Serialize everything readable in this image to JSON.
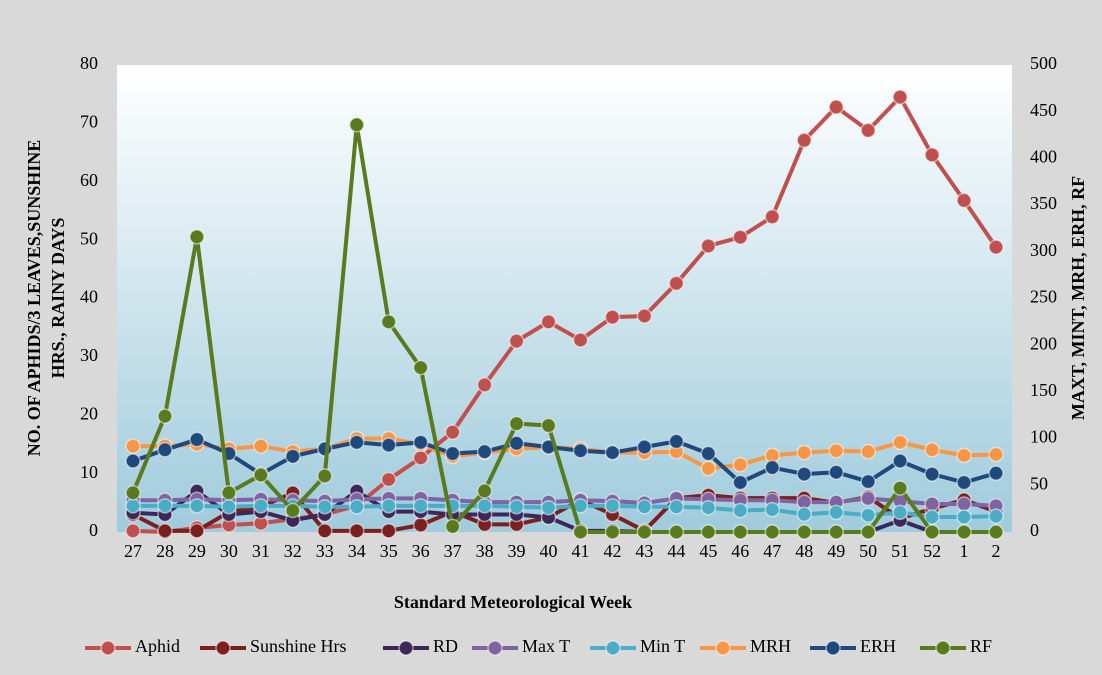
{
  "chart_data": {
    "type": "line",
    "xlabel": "Standard Meteorological Week",
    "ylabel": [
      "NO. OF APHIDS/3 LEAVES,SUNSHINE",
      "HRS., RAINY DAYS"
    ],
    "y2label": "MAXT, MINT, MRH, ERH, RF",
    "categories": [
      "27",
      "28",
      "29",
      "30",
      "31",
      "32",
      "33",
      "34",
      "35",
      "36",
      "37",
      "38",
      "39",
      "40",
      "41",
      "42",
      "43",
      "44",
      "45",
      "46",
      "47",
      "48",
      "49",
      "50",
      "51",
      "52",
      "1",
      "2"
    ],
    "ylim": [
      0,
      80
    ],
    "yticks": [
      0,
      10,
      20,
      30,
      40,
      50,
      60,
      70,
      80
    ],
    "y2lim": [
      0,
      500
    ],
    "y2ticks": [
      0,
      50,
      100,
      150,
      200,
      250,
      300,
      350,
      400,
      450,
      500
    ],
    "series": [
      {
        "name": "Aphid",
        "color": "#c0504d",
        "values": [
          0.2,
          0,
          0.7,
          1.2,
          1.5,
          2.2,
          3,
          4.5,
          9,
          12.7,
          17.1,
          25.2,
          32.7,
          36,
          32.9,
          36.8,
          37,
          42.6,
          49,
          50.5,
          54,
          67.1,
          72.8,
          68.8,
          74.5,
          64.6,
          56.8,
          48.8
        ]
      },
      {
        "name": "Sunshine Hrs",
        "color": "#7b1f1f",
        "values": [
          3,
          0.2,
          0.2,
          3.4,
          4.3,
          6.7,
          0.2,
          0.2,
          0.2,
          1.2,
          3.5,
          1.3,
          1.3,
          2.5,
          5.5,
          3,
          0.2,
          5.8,
          6.3,
          5.8,
          5.8,
          5.8,
          5,
          6,
          2.3,
          4,
          5.5,
          3.5
        ]
      },
      {
        "name": "RD",
        "color": "#3b2758",
        "values": [
          3.3,
          3,
          7,
          3,
          3.5,
          2,
          3,
          7,
          3.5,
          3.5,
          3,
          3,
          3,
          2.5,
          0.2,
          0.2,
          0,
          0,
          0,
          0,
          0,
          0,
          0,
          0,
          2,
          0,
          0,
          0
        ]
      },
      {
        "name": "Max T",
        "color": "#8064a2",
        "axis": "y2",
        "values": [
          34,
          34,
          35,
          34,
          35,
          34,
          33,
          35,
          36,
          36,
          34,
          32,
          32,
          32,
          34,
          33,
          31,
          36,
          35,
          34,
          34,
          32,
          32,
          36,
          33,
          30,
          30,
          28
        ]
      },
      {
        "name": "Min T",
        "color": "#4bacc6",
        "axis": "y2",
        "values": [
          28,
          28,
          28,
          27,
          28,
          28,
          27,
          27,
          28,
          28,
          28,
          28,
          27,
          26,
          28,
          28,
          27,
          27,
          26,
          23,
          24,
          19,
          21,
          18,
          21,
          16,
          16,
          17
        ]
      },
      {
        "name": "MRH",
        "color": "#f79646",
        "axis": "y2",
        "values": [
          92,
          92,
          94,
          89,
          92,
          86,
          89,
          100,
          100,
          94,
          81,
          85,
          89,
          91,
          89,
          85,
          85,
          86,
          68,
          72,
          82,
          85,
          87,
          86,
          96,
          88,
          82,
          83
        ]
      },
      {
        "name": "ERH",
        "color": "#1f497d",
        "axis": "y2",
        "values": [
          76,
          88,
          99,
          84,
          62,
          81,
          89,
          96,
          93,
          96,
          84,
          86,
          95,
          91,
          87,
          85,
          91,
          97,
          84,
          53,
          69,
          62,
          64,
          54,
          76,
          62,
          53,
          63
        ]
      },
      {
        "name": "RF",
        "color": "#5a7a1e",
        "axis": "y2",
        "values": [
          42,
          124,
          316,
          42,
          61,
          23,
          60,
          436,
          225,
          176,
          6,
          44,
          116,
          114,
          0,
          0,
          0,
          0,
          0,
          0,
          0,
          0,
          0,
          0,
          47,
          0,
          0,
          0
        ]
      }
    ]
  }
}
